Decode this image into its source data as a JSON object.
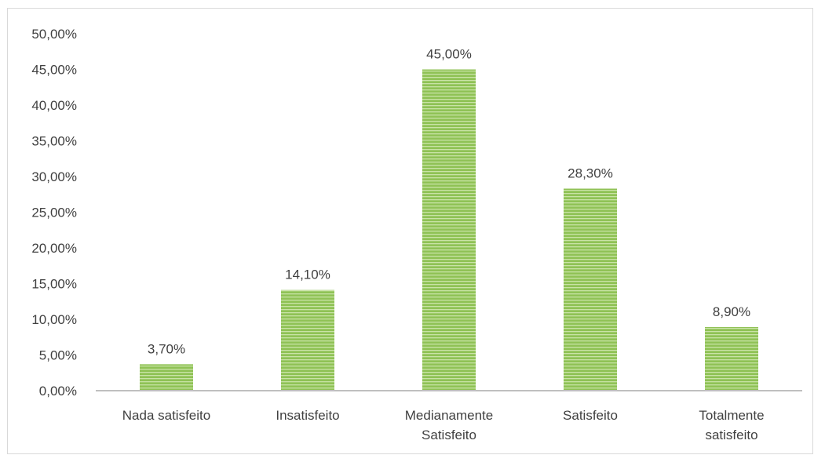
{
  "chart_data": {
    "type": "bar",
    "title": "",
    "xlabel": "",
    "ylabel": "",
    "ylim": [
      0,
      50
    ],
    "y_ticks": [
      "0,00%",
      "5,00%",
      "10,00%",
      "15,00%",
      "20,00%",
      "25,00%",
      "30,00%",
      "35,00%",
      "40,00%",
      "45,00%",
      "50,00%"
    ],
    "y_tick_values": [
      0,
      5,
      10,
      15,
      20,
      25,
      30,
      35,
      40,
      45,
      50
    ],
    "categories": [
      [
        "Nada satisfeito"
      ],
      [
        "Insatisfeito"
      ],
      [
        "Medianamente",
        "Satisfeito"
      ],
      [
        "Satisfeito"
      ],
      [
        "Totalmente",
        "satisfeito"
      ]
    ],
    "values": [
      3.7,
      14.1,
      45.0,
      28.3,
      8.9
    ],
    "data_labels": [
      "3,70%",
      "14,10%",
      "45,00%",
      "28,30%",
      "8,90%"
    ],
    "grid": false,
    "legend": "none",
    "colors": {
      "bar_fill": "#8fc255",
      "bar_stripe": "#c9e3a6",
      "axis": "#bfbfbf",
      "text": "#404040"
    }
  }
}
